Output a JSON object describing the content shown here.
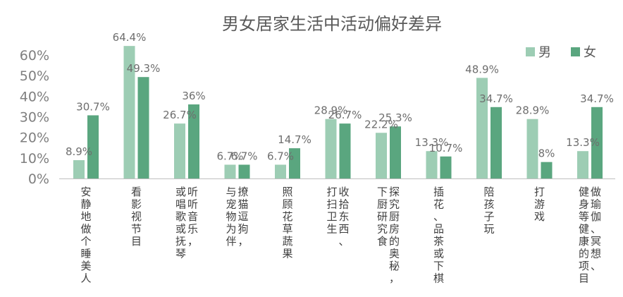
{
  "chart_data": {
    "type": "bar",
    "title": "男女居家生活中活动偏好差异",
    "xlabel": "",
    "ylabel": "",
    "ylim": [
      0,
      0.6
    ],
    "yticks": [
      "60%",
      "50%",
      "40%",
      "30%",
      "20%",
      "10%",
      "0%"
    ],
    "ytick_values": [
      0.6,
      0.5,
      0.4,
      0.3,
      0.2,
      0.1,
      0
    ],
    "legend": "top-right",
    "grid": false,
    "categories": [
      {
        "lines": [
          "安静地做个睡美人"
        ]
      },
      {
        "lines": [
          "看影视节目"
        ]
      },
      {
        "lines": [
          "听听音乐，",
          "或唱歌或抚琴"
        ]
      },
      {
        "lines": [
          "撩猫逗狗，",
          "与宠物为伴"
        ]
      },
      {
        "lines": [
          "照顾花草蔬果"
        ]
      },
      {
        "lines": [
          "收拾东西、",
          "打扫卫生"
        ]
      },
      {
        "lines": [
          "探究厨房的奥秘，",
          "下厨研究食"
        ]
      },
      {
        "lines": [
          "插花、品茶或下棋"
        ]
      },
      {
        "lines": [
          "陪孩子玩"
        ]
      },
      {
        "lines": [
          "打游戏"
        ]
      },
      {
        "lines": [
          "做瑜伽、冥想、",
          "健身等健康的项目"
        ]
      }
    ],
    "series": [
      {
        "name": "男",
        "color": "#9dcdb4",
        "values": [
          0.089,
          0.644,
          0.267,
          0.067,
          0.067,
          0.289,
          0.222,
          0.133,
          0.489,
          0.289,
          0.133
        ],
        "labels": [
          "8.9%",
          "64.4%",
          "26.7%",
          "6.7%",
          "6.7%",
          "28.9%",
          "22.2%",
          "13.3%",
          "48.9%",
          "28.9%",
          "13.3%"
        ]
      },
      {
        "name": "女",
        "color": "#5aa67f",
        "values": [
          0.307,
          0.493,
          0.36,
          0.067,
          0.147,
          0.267,
          0.253,
          0.107,
          0.347,
          0.08,
          0.347
        ],
        "labels": [
          "30.7%",
          "49.3%",
          "36%",
          "6.7%",
          "14.7%",
          "26.7%",
          "25.3%",
          "10.7%",
          "34.7%",
          "8%",
          "34.7%"
        ]
      }
    ]
  }
}
